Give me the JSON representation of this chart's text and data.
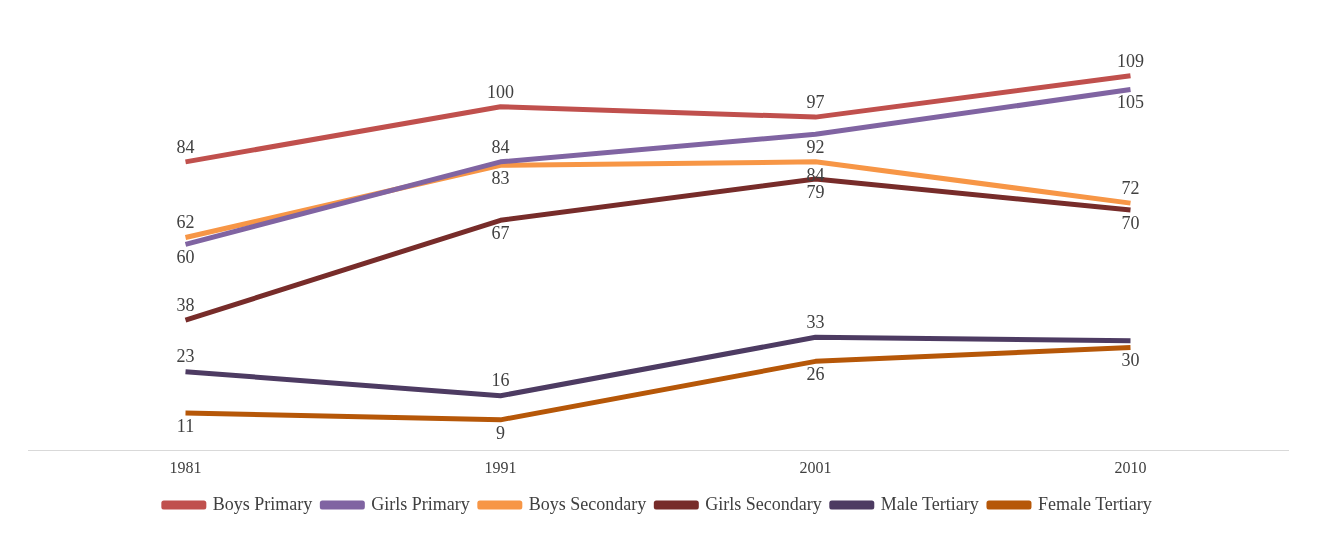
{
  "chart_data": {
    "type": "line",
    "categories": [
      "1981",
      "1991",
      "2001",
      "2010"
    ],
    "data_labels": true,
    "legend": "bottom",
    "grid": false,
    "marker": "none",
    "series": [
      {
        "name": "Boys Primary",
        "color": "#c0504d",
        "values": [
          84,
          100,
          97,
          109
        ]
      },
      {
        "name": "Girls Primary",
        "color": "#8064a2",
        "values": [
          60,
          84,
          92,
          105
        ]
      },
      {
        "name": "Boys Secondary",
        "color": "#f79646",
        "values": [
          62,
          83,
          84,
          72
        ]
      },
      {
        "name": "Girls Secondary",
        "color": "#772c2a",
        "values": [
          38,
          67,
          79,
          70
        ]
      },
      {
        "name": "Male Tertiary",
        "color": "#4d3b62",
        "values": [
          23,
          16,
          33,
          32
        ],
        "value_labels": [
          "23",
          "16",
          "33",
          null
        ]
      },
      {
        "name": "Female Tertiary",
        "color": "#b65708",
        "values": [
          11,
          9,
          26,
          30
        ]
      }
    ]
  }
}
